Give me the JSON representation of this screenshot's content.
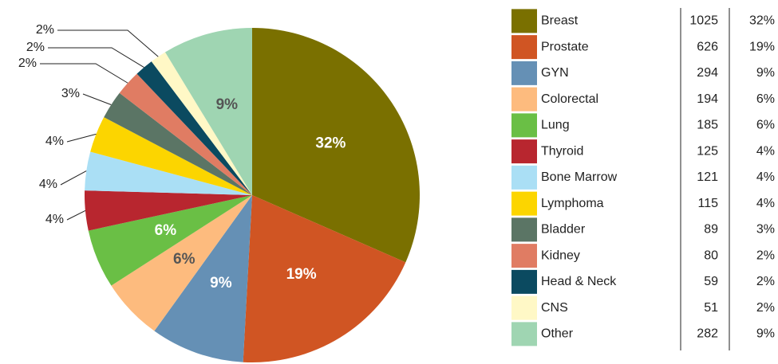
{
  "chart_data": {
    "type": "pie",
    "categories": [
      "Breast",
      "Prostate",
      "GYN",
      "Colorectal",
      "Lung",
      "Thyroid",
      "Bone Marrow",
      "Lymphoma",
      "Bladder",
      "Kidney",
      "Head & Neck",
      "CNS",
      "Other"
    ],
    "values": [
      1025,
      626,
      294,
      194,
      185,
      125,
      121,
      115,
      89,
      80,
      59,
      51,
      282
    ],
    "percent_labels": [
      "32%",
      "19%",
      "9%",
      "6%",
      "6%",
      "4%",
      "4%",
      "4%",
      "3%",
      "2%",
      "2%",
      "2%",
      "9%"
    ],
    "colors": [
      "#7a7000",
      "#d05523",
      "#6590b5",
      "#fdbb7e",
      "#6abf45",
      "#b8262f",
      "#aadff5",
      "#fcd500",
      "#5b7565",
      "#e07c63",
      "#0b4a60",
      "#fff8c6",
      "#9fd5b2"
    ]
  }
}
